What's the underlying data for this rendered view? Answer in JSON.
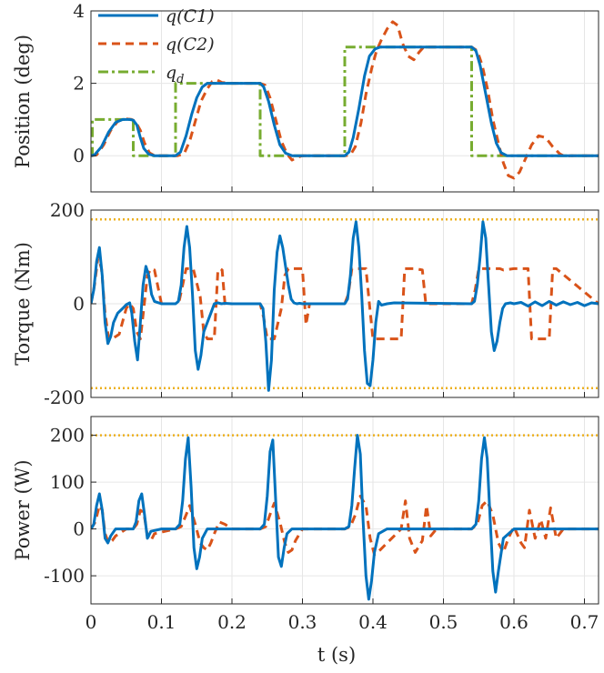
{
  "figure": {
    "xlabel": "t (s)",
    "colors": {
      "c1": "#0072BD",
      "c2": "#D95319",
      "qd": "#77AC30",
      "limit": "#EDB120"
    }
  },
  "chart_data": [
    {
      "type": "line",
      "ylabel": "Position (deg)",
      "xlim": [
        0,
        0.72
      ],
      "ylim": [
        -1,
        4
      ],
      "xticks": [
        0,
        0.1,
        0.2,
        0.3,
        0.4,
        0.5,
        0.6,
        0.7
      ],
      "yticks": [
        0,
        2,
        4
      ],
      "grid": true,
      "legend_position": "top-left",
      "series": [
        {
          "name": "q(C1)",
          "style": "solid",
          "color": "#0072BD",
          "x": [
            0,
            0.005,
            0.015,
            0.025,
            0.035,
            0.045,
            0.055,
            0.06,
            0.065,
            0.07,
            0.075,
            0.082,
            0.09,
            0.12,
            0.127,
            0.135,
            0.143,
            0.15,
            0.158,
            0.165,
            0.175,
            0.185,
            0.24,
            0.245,
            0.252,
            0.26,
            0.268,
            0.276,
            0.285,
            0.295,
            0.36,
            0.366,
            0.372,
            0.38,
            0.388,
            0.395,
            0.403,
            0.41,
            0.42,
            0.43,
            0.54,
            0.546,
            0.552,
            0.56,
            0.568,
            0.575,
            0.582,
            0.59,
            0.6,
            0.72
          ],
          "y": [
            0,
            0.02,
            0.25,
            0.65,
            0.92,
            1.0,
            1.0,
            0.98,
            0.85,
            0.5,
            0.2,
            0.04,
            0,
            0,
            0.1,
            0.55,
            1.15,
            1.6,
            1.9,
            2.0,
            2.0,
            2.0,
            2.0,
            1.9,
            1.5,
            0.85,
            0.3,
            0.07,
            0,
            0,
            0,
            0.1,
            0.5,
            1.3,
            2.2,
            2.75,
            2.95,
            3.0,
            3.0,
            3.0,
            3.0,
            2.9,
            2.5,
            1.7,
            0.9,
            0.35,
            0.08,
            0,
            0,
            0
          ]
        },
        {
          "name": "q(C2)",
          "style": "dashed",
          "color": "#D95319",
          "x": [
            0,
            0.008,
            0.018,
            0.028,
            0.038,
            0.048,
            0.058,
            0.063,
            0.07,
            0.076,
            0.083,
            0.09,
            0.123,
            0.132,
            0.14,
            0.148,
            0.156,
            0.165,
            0.172,
            0.178,
            0.186,
            0.2,
            0.24,
            0.247,
            0.254,
            0.262,
            0.27,
            0.278,
            0.285,
            0.292,
            0.3,
            0.36,
            0.368,
            0.375,
            0.383,
            0.39,
            0.398,
            0.405,
            0.412,
            0.42,
            0.428,
            0.435,
            0.442,
            0.45,
            0.458,
            0.465,
            0.472,
            0.48,
            0.54,
            0.548,
            0.555,
            0.563,
            0.57,
            0.578,
            0.585,
            0.592,
            0.6,
            0.608,
            0.616,
            0.625,
            0.635,
            0.645,
            0.655,
            0.665,
            0.672,
            0.68,
            0.72
          ],
          "y": [
            0,
            0.02,
            0.3,
            0.7,
            0.95,
            1.02,
            1.0,
            0.95,
            0.7,
            0.35,
            0.08,
            0,
            0,
            0.05,
            0.4,
            0.95,
            1.5,
            1.85,
            2.05,
            2.1,
            2.02,
            2.0,
            2.0,
            1.95,
            1.6,
            1.0,
            0.4,
            0.05,
            -0.12,
            -0.05,
            0,
            0,
            0.02,
            0.25,
            0.9,
            1.7,
            2.4,
            2.9,
            3.2,
            3.5,
            3.7,
            3.6,
            3.1,
            2.75,
            2.65,
            2.85,
            3.0,
            3.0,
            3.0,
            2.9,
            2.5,
            1.8,
            1.0,
            0.35,
            -0.2,
            -0.55,
            -0.62,
            -0.45,
            -0.1,
            0.3,
            0.55,
            0.5,
            0.25,
            0.05,
            -0.02,
            0,
            0
          ]
        },
        {
          "name": "q_d",
          "style": "dashdot",
          "color": "#77AC30",
          "x": [
            0,
            0.002,
            0.002,
            0.06,
            0.06,
            0.12,
            0.12,
            0.24,
            0.24,
            0.36,
            0.36,
            0.54,
            0.54,
            0.72
          ],
          "y": [
            0,
            0,
            1,
            1,
            0,
            0,
            2,
            2,
            0,
            0,
            3,
            3,
            0,
            0
          ]
        }
      ]
    },
    {
      "type": "line",
      "ylabel": "Torque (Nm)",
      "xlim": [
        0,
        0.72
      ],
      "ylim": [
        -200,
        200
      ],
      "xticks": [
        0,
        0.1,
        0.2,
        0.3,
        0.4,
        0.5,
        0.6,
        0.7
      ],
      "yticks": [
        -200,
        0,
        200
      ],
      "grid": true,
      "series": [
        {
          "name": "q(C1)",
          "style": "solid",
          "color": "#0072BD",
          "x": [
            0,
            0.004,
            0.008,
            0.012,
            0.016,
            0.02,
            0.024,
            0.028,
            0.032,
            0.038,
            0.045,
            0.05,
            0.055,
            0.058,
            0.062,
            0.066,
            0.07,
            0.074,
            0.078,
            0.082,
            0.086,
            0.09,
            0.1,
            0.12,
            0.124,
            0.128,
            0.132,
            0.136,
            0.14,
            0.144,
            0.148,
            0.152,
            0.156,
            0.16,
            0.165,
            0.17,
            0.175,
            0.18,
            0.185,
            0.19,
            0.2,
            0.24,
            0.244,
            0.248,
            0.252,
            0.256,
            0.26,
            0.264,
            0.268,
            0.272,
            0.276,
            0.28,
            0.284,
            0.288,
            0.292,
            0.296,
            0.3,
            0.31,
            0.36,
            0.364,
            0.368,
            0.372,
            0.376,
            0.38,
            0.384,
            0.388,
            0.392,
            0.396,
            0.4,
            0.404,
            0.408,
            0.412,
            0.42,
            0.43,
            0.54,
            0.544,
            0.548,
            0.552,
            0.556,
            0.56,
            0.564,
            0.568,
            0.572,
            0.576,
            0.58,
            0.584,
            0.588,
            0.595,
            0.6,
            0.61,
            0.62,
            0.63,
            0.64,
            0.65,
            0.66,
            0.67,
            0.68,
            0.69,
            0.7,
            0.71,
            0.72
          ],
          "y": [
            0,
            30,
            90,
            120,
            60,
            -40,
            -85,
            -70,
            -40,
            -20,
            -10,
            -2,
            2,
            -20,
            -80,
            -120,
            -40,
            40,
            80,
            60,
            20,
            5,
            0,
            0,
            5,
            40,
            120,
            165,
            120,
            20,
            -100,
            -140,
            -110,
            -60,
            -40,
            -20,
            0,
            2,
            0,
            1,
            0,
            0,
            -10,
            -80,
            -185,
            -120,
            30,
            110,
            145,
            120,
            80,
            40,
            10,
            2,
            0,
            1,
            0,
            0,
            0,
            10,
            60,
            140,
            175,
            120,
            20,
            -100,
            -170,
            -175,
            -120,
            -40,
            5,
            -3,
            0,
            2,
            0,
            5,
            40,
            100,
            175,
            140,
            40,
            -60,
            -100,
            -80,
            -40,
            -10,
            0,
            2,
            0,
            3,
            -5,
            4,
            -4,
            5,
            -3,
            4,
            -2,
            3,
            -4,
            2,
            0
          ]
        },
        {
          "name": "q(C2)",
          "style": "dashed",
          "color": "#D95319",
          "x": [
            0,
            0.005,
            0.01,
            0.015,
            0.02,
            0.025,
            0.03,
            0.04,
            0.05,
            0.055,
            0.06,
            0.065,
            0.07,
            0.075,
            0.08,
            0.085,
            0.09,
            0.1,
            0.12,
            0.125,
            0.13,
            0.135,
            0.145,
            0.155,
            0.16,
            0.165,
            0.175,
            0.18,
            0.183,
            0.186,
            0.19,
            0.2,
            0.24,
            0.245,
            0.25,
            0.26,
            0.27,
            0.275,
            0.28,
            0.285,
            0.3,
            0.305,
            0.31,
            0.36,
            0.365,
            0.37,
            0.38,
            0.39,
            0.395,
            0.4,
            0.405,
            0.42,
            0.44,
            0.445,
            0.46,
            0.47,
            0.475,
            0.48,
            0.54,
            0.545,
            0.55,
            0.56,
            0.57,
            0.58,
            0.585,
            0.6,
            0.62,
            0.625,
            0.64,
            0.65,
            0.655,
            0.66,
            0.72
          ],
          "y": [
            0,
            40,
            100,
            75,
            -20,
            -75,
            -75,
            -65,
            -10,
            0,
            -10,
            -60,
            -75,
            -10,
            60,
            75,
            72,
            0,
            0,
            5,
            40,
            75,
            75,
            15,
            -60,
            -75,
            -75,
            70,
            75,
            72,
            0,
            0,
            0,
            -30,
            -75,
            -75,
            -10,
            60,
            75,
            75,
            75,
            -45,
            0,
            0,
            20,
            75,
            75,
            75,
            0,
            -75,
            -75,
            -75,
            -75,
            75,
            75,
            72,
            0,
            0,
            0,
            30,
            75,
            75,
            75,
            75,
            72,
            75,
            75,
            -75,
            -75,
            -75,
            75,
            75,
            0
          ]
        },
        {
          "name": "limit",
          "style": "dotted",
          "color": "#EDB120",
          "x": [
            0,
            0.72
          ],
          "y": [
            180,
            180
          ]
        },
        {
          "name": "limit",
          "style": "dotted",
          "color": "#EDB120",
          "x": [
            0,
            0.72
          ],
          "y": [
            -180,
            -180
          ]
        }
      ]
    },
    {
      "type": "line",
      "ylabel": "Power (W)",
      "xlim": [
        0,
        0.72
      ],
      "ylim": [
        -160,
        240
      ],
      "xticks": [
        0,
        0.1,
        0.2,
        0.3,
        0.4,
        0.5,
        0.6,
        0.7
      ],
      "xticklabels": [
        "0",
        "0.1",
        "0.2",
        "0.3",
        "0.4",
        "0.5",
        "0.6",
        "0.7"
      ],
      "yticks": [
        -100,
        0,
        100,
        200
      ],
      "grid": true,
      "series": [
        {
          "name": "q(C1)",
          "style": "solid",
          "color": "#0072BD",
          "x": [
            0,
            0.004,
            0.008,
            0.012,
            0.016,
            0.02,
            0.024,
            0.028,
            0.035,
            0.05,
            0.06,
            0.064,
            0.068,
            0.072,
            0.076,
            0.08,
            0.085,
            0.1,
            0.12,
            0.126,
            0.13,
            0.134,
            0.138,
            0.142,
            0.146,
            0.15,
            0.154,
            0.158,
            0.165,
            0.2,
            0.24,
            0.246,
            0.25,
            0.254,
            0.258,
            0.262,
            0.266,
            0.27,
            0.274,
            0.278,
            0.285,
            0.3,
            0.36,
            0.366,
            0.37,
            0.374,
            0.378,
            0.382,
            0.386,
            0.39,
            0.394,
            0.398,
            0.402,
            0.408,
            0.42,
            0.54,
            0.546,
            0.55,
            0.554,
            0.558,
            0.562,
            0.566,
            0.57,
            0.574,
            0.578,
            0.585,
            0.6,
            0.72
          ],
          "y": [
            0,
            10,
            50,
            75,
            40,
            -20,
            -30,
            -15,
            0,
            0,
            0,
            15,
            60,
            75,
            30,
            -20,
            -5,
            0,
            0,
            10,
            60,
            150,
            195,
            90,
            -40,
            -85,
            -60,
            -20,
            0,
            0,
            0,
            10,
            70,
            165,
            190,
            60,
            -60,
            -80,
            -40,
            -10,
            0,
            0,
            0,
            5,
            50,
            130,
            200,
            160,
            20,
            -100,
            -150,
            -110,
            -50,
            -10,
            0,
            0,
            10,
            60,
            150,
            195,
            150,
            30,
            -90,
            -135,
            -90,
            -20,
            0,
            0
          ]
        },
        {
          "name": "q(C2)",
          "style": "dashed",
          "color": "#D95319",
          "x": [
            0,
            0.006,
            0.012,
            0.016,
            0.02,
            0.025,
            0.03,
            0.035,
            0.05,
            0.06,
            0.065,
            0.07,
            0.075,
            0.08,
            0.085,
            0.09,
            0.12,
            0.128,
            0.135,
            0.14,
            0.148,
            0.155,
            0.16,
            0.165,
            0.17,
            0.175,
            0.182,
            0.19,
            0.2,
            0.24,
            0.248,
            0.255,
            0.26,
            0.268,
            0.275,
            0.28,
            0.285,
            0.29,
            0.3,
            0.36,
            0.368,
            0.375,
            0.382,
            0.39,
            0.396,
            0.402,
            0.41,
            0.42,
            0.43,
            0.44,
            0.446,
            0.452,
            0.46,
            0.47,
            0.476,
            0.482,
            0.49,
            0.54,
            0.548,
            0.555,
            0.562,
            0.57,
            0.578,
            0.585,
            0.592,
            0.6,
            0.61,
            0.615,
            0.622,
            0.63,
            0.638,
            0.645,
            0.652,
            0.66,
            0.67,
            0.72
          ],
          "y": [
            0,
            15,
            50,
            40,
            -10,
            -30,
            -25,
            -15,
            0,
            0,
            10,
            40,
            35,
            -15,
            -25,
            -10,
            0,
            5,
            30,
            50,
            10,
            -30,
            -40,
            -45,
            -30,
            -10,
            15,
            10,
            0,
            0,
            5,
            35,
            55,
            15,
            -30,
            -50,
            -45,
            -25,
            0,
            0,
            5,
            30,
            70,
            50,
            -20,
            -55,
            -45,
            -30,
            -15,
            0,
            60,
            -20,
            -50,
            -25,
            50,
            -15,
            0,
            0,
            10,
            50,
            60,
            30,
            -30,
            -50,
            -20,
            5,
            -30,
            -40,
            40,
            -20,
            20,
            -20,
            45,
            -20,
            0,
            0
          ]
        },
        {
          "name": "limit",
          "style": "dotted",
          "color": "#EDB120",
          "x": [
            0,
            0.72
          ],
          "y": [
            200,
            200
          ]
        }
      ]
    }
  ]
}
